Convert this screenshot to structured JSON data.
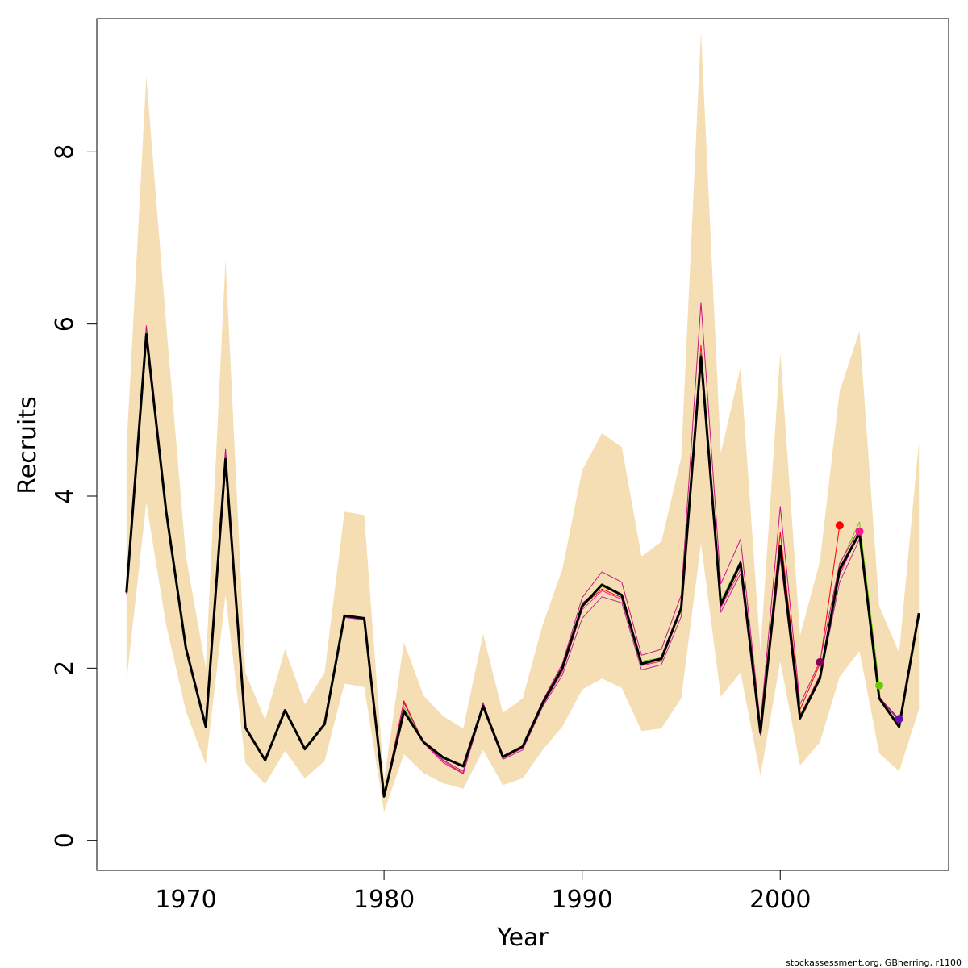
{
  "chart_data": {
    "type": "line",
    "xlabel": "Year",
    "ylabel": "Recruits",
    "credit": "stockassessment.org, GBherring, r1100",
    "xlim": [
      1965.5,
      2008.5
    ],
    "ylim": [
      -0.35,
      9.55
    ],
    "xticks": [
      1970,
      1980,
      1990,
      2000
    ],
    "yticks": [
      0,
      2,
      4,
      6,
      8
    ],
    "band_color": "#f5deb3",
    "band": {
      "name": "confidence interval",
      "x": [
        1967,
        1968,
        1969,
        1970,
        1971,
        1972,
        1973,
        1974,
        1975,
        1976,
        1977,
        1978,
        1979,
        1980,
        1981,
        1982,
        1983,
        1984,
        1985,
        1986,
        1987,
        1988,
        1989,
        1990,
        1991,
        1992,
        1993,
        1994,
        1995,
        1996,
        1997,
        1998,
        1999,
        2000,
        2001,
        2002,
        2003,
        2004,
        2005,
        2006,
        2007
      ],
      "upper": [
        4.55,
        8.88,
        6.0,
        3.3,
        2.0,
        6.75,
        1.95,
        1.4,
        2.22,
        1.58,
        1.95,
        3.82,
        3.78,
        0.7,
        2.3,
        1.68,
        1.44,
        1.3,
        2.4,
        1.48,
        1.65,
        2.5,
        3.15,
        4.3,
        4.73,
        4.57,
        3.3,
        3.47,
        4.45,
        9.4,
        4.5,
        5.5,
        2.2,
        5.67,
        2.38,
        3.24,
        5.22,
        5.92,
        2.72,
        2.18,
        4.63
      ],
      "lower": [
        1.85,
        3.92,
        2.5,
        1.5,
        0.88,
        2.85,
        0.9,
        0.65,
        1.04,
        0.72,
        0.92,
        1.82,
        1.78,
        0.33,
        1.0,
        0.78,
        0.66,
        0.6,
        1.05,
        0.64,
        0.72,
        1.05,
        1.32,
        1.75,
        1.88,
        1.77,
        1.27,
        1.3,
        1.65,
        3.45,
        1.67,
        1.95,
        0.75,
        2.08,
        0.87,
        1.14,
        1.9,
        2.2,
        1.01,
        0.8,
        1.52
      ]
    },
    "series": [
      {
        "name": "retro-red",
        "color": "#ff0000",
        "x": [
          1967,
          1968,
          1969,
          1970,
          1971,
          1972,
          1973,
          1974,
          1975,
          1976,
          1977,
          1978,
          1979,
          1980,
          1981,
          1982,
          1983,
          1984,
          1985,
          1986,
          1987,
          1988,
          1989,
          1990,
          1991,
          1992,
          1993,
          1994,
          1995,
          1996,
          1997,
          1998,
          1999,
          2000,
          2001,
          2002,
          2003
        ],
        "y": [
          2.88,
          5.92,
          3.83,
          2.24,
          1.33,
          4.48,
          1.3,
          0.92,
          1.5,
          1.05,
          1.35,
          2.6,
          2.57,
          0.51,
          1.62,
          1.13,
          0.9,
          0.78,
          1.59,
          0.96,
          1.08,
          1.58,
          1.98,
          2.72,
          2.92,
          2.82,
          2.05,
          2.1,
          2.7,
          5.75,
          2.72,
          3.2,
          1.25,
          3.58,
          1.52,
          2.05,
          3.66
        ]
      },
      {
        "name": "retro-pink",
        "color": "#ff1493",
        "x": [
          1967,
          1968,
          1969,
          1970,
          1971,
          1972,
          1973,
          1974,
          1975,
          1976,
          1977,
          1978,
          1979,
          1980,
          1981,
          1982,
          1983,
          1984,
          1985,
          1986,
          1987,
          1988,
          1989,
          1990,
          1991,
          1992,
          1993,
          1994,
          1995,
          1996,
          1997,
          1998,
          1999,
          2000,
          2001,
          2002,
          2003,
          2004
        ],
        "y": [
          2.88,
          5.95,
          3.85,
          2.25,
          1.33,
          4.5,
          1.3,
          0.92,
          1.5,
          1.05,
          1.34,
          2.6,
          2.56,
          0.51,
          1.6,
          1.13,
          0.9,
          0.77,
          1.58,
          0.95,
          1.07,
          1.57,
          1.96,
          2.68,
          2.9,
          2.8,
          2.03,
          2.08,
          2.68,
          5.7,
          2.7,
          3.15,
          1.24,
          3.4,
          1.45,
          1.92,
          3.08,
          3.59
        ]
      },
      {
        "name": "retro-green",
        "color": "#66cc00",
        "x": [
          1967,
          1968,
          1969,
          1970,
          1971,
          1972,
          1973,
          1974,
          1975,
          1976,
          1977,
          1978,
          1979,
          1980,
          1981,
          1982,
          1983,
          1984,
          1985,
          1986,
          1987,
          1988,
          1989,
          1990,
          1991,
          1992,
          1993,
          1994,
          1995,
          1996,
          1997,
          1998,
          1999,
          2000,
          2001,
          2002,
          2003,
          2004,
          2005
        ],
        "y": [
          2.88,
          5.9,
          3.82,
          2.23,
          1.33,
          4.45,
          1.3,
          0.93,
          1.5,
          1.06,
          1.35,
          2.6,
          2.58,
          0.51,
          1.55,
          1.14,
          0.95,
          0.85,
          1.57,
          0.97,
          1.09,
          1.6,
          2.02,
          2.75,
          2.95,
          2.85,
          2.08,
          2.12,
          2.72,
          5.68,
          2.78,
          3.25,
          1.27,
          3.42,
          1.45,
          1.9,
          3.2,
          3.7,
          1.8
        ]
      },
      {
        "name": "retro-purple",
        "color": "#6a0dad",
        "x": [
          1967,
          1968,
          1969,
          1970,
          1971,
          1972,
          1973,
          1974,
          1975,
          1976,
          1977,
          1978,
          1979,
          1980,
          1981,
          1982,
          1983,
          1984,
          1985,
          1986,
          1987,
          1988,
          1989,
          1990,
          1991,
          1992,
          1993,
          1994,
          1995,
          1996,
          1997,
          1998,
          1999,
          2000,
          2001,
          2002,
          2003,
          2004,
          2005,
          2006
        ],
        "y": [
          2.87,
          5.85,
          3.8,
          2.22,
          1.32,
          4.43,
          1.3,
          0.93,
          1.5,
          1.06,
          1.35,
          2.61,
          2.58,
          0.5,
          1.52,
          1.14,
          0.96,
          0.86,
          1.55,
          0.97,
          1.09,
          1.6,
          2.02,
          2.75,
          2.96,
          2.86,
          2.06,
          2.12,
          2.72,
          5.65,
          2.75,
          3.25,
          1.25,
          3.4,
          1.42,
          1.88,
          3.12,
          3.56,
          1.66,
          1.41
        ]
      },
      {
        "name": "retro-magenta",
        "color": "#c71585",
        "x": [
          1967,
          1968,
          1969,
          1970,
          1971,
          1972,
          1973,
          1974,
          1975,
          1976,
          1977,
          1978,
          1979,
          1980,
          1981,
          1982,
          1983,
          1984,
          1985,
          1986,
          1987,
          1988,
          1989,
          1990,
          1991,
          1992,
          1993,
          1994,
          1995,
          1996,
          1997,
          1998,
          1999,
          2000,
          2001,
          2002,
          2003,
          2004,
          2005,
          2006
        ],
        "y": [
          2.89,
          5.98,
          3.86,
          2.26,
          1.34,
          4.55,
          1.31,
          0.93,
          1.51,
          1.06,
          1.36,
          2.62,
          2.59,
          0.52,
          1.6,
          1.14,
          0.93,
          0.8,
          1.6,
          0.97,
          1.09,
          1.62,
          2.05,
          2.82,
          3.12,
          3.0,
          2.15,
          2.22,
          2.85,
          6.25,
          2.98,
          3.5,
          1.35,
          3.88,
          1.58,
          2.08,
          3.22,
          3.62,
          1.67,
          1.38
        ]
      },
      {
        "name": "retro-violet",
        "color": "#b03090",
        "x": [
          1967,
          1968,
          1969,
          1970,
          1971,
          1972,
          1973,
          1974,
          1975,
          1976,
          1977,
          1978,
          1979,
          1980,
          1981,
          1982,
          1983,
          1984,
          1985,
          1986,
          1987,
          1988,
          1989,
          1990,
          1991,
          1992,
          1993,
          1994,
          1995,
          1996,
          1997,
          1998,
          1999,
          2000,
          2001,
          2002,
          2003,
          2004,
          2005,
          2006
        ],
        "y": [
          2.86,
          5.8,
          3.78,
          2.2,
          1.32,
          4.4,
          1.29,
          0.92,
          1.49,
          1.05,
          1.34,
          2.59,
          2.56,
          0.5,
          1.5,
          1.13,
          0.92,
          0.78,
          1.54,
          0.94,
          1.05,
          1.55,
          1.92,
          2.58,
          2.83,
          2.76,
          1.98,
          2.04,
          2.6,
          5.55,
          2.65,
          3.1,
          1.22,
          3.28,
          1.4,
          1.86,
          3.0,
          3.5,
          1.64,
          1.4
        ]
      },
      {
        "name": "final",
        "color": "#000000",
        "emphasis": true,
        "x": [
          1967,
          1968,
          1969,
          1970,
          1971,
          1972,
          1973,
          1974,
          1975,
          1976,
          1977,
          1978,
          1979,
          1980,
          1981,
          1982,
          1983,
          1984,
          1985,
          1986,
          1987,
          1988,
          1989,
          1990,
          1991,
          1992,
          1993,
          1994,
          1995,
          1996,
          1997,
          1998,
          1999,
          2000,
          2001,
          2002,
          2003,
          2004,
          2005,
          2006,
          2007
        ],
        "y": [
          2.88,
          5.88,
          3.82,
          2.23,
          1.32,
          4.43,
          1.31,
          0.93,
          1.51,
          1.06,
          1.35,
          2.61,
          2.58,
          0.51,
          1.5,
          1.14,
          0.96,
          0.86,
          1.56,
          0.97,
          1.09,
          1.59,
          2.0,
          2.72,
          2.97,
          2.85,
          2.05,
          2.11,
          2.7,
          5.62,
          2.74,
          3.22,
          1.25,
          3.42,
          1.42,
          1.88,
          3.15,
          3.57,
          1.65,
          1.32,
          2.64
        ]
      }
    ],
    "endpoints": [
      {
        "name": "retro-red-end",
        "x": 2003,
        "y": 3.66,
        "color": "#ff0000"
      },
      {
        "name": "retro-pink-end",
        "x": 2004,
        "y": 3.59,
        "color": "#ff1493"
      },
      {
        "name": "retro-green-end",
        "x": 2005,
        "y": 1.8,
        "color": "#66cc00"
      },
      {
        "name": "retro-purple-end",
        "x": 2006,
        "y": 1.41,
        "color": "#6a0dad"
      },
      {
        "name": "retro-magenta-end",
        "x": 2002,
        "y": 2.07,
        "color": "#8b0057"
      }
    ]
  }
}
